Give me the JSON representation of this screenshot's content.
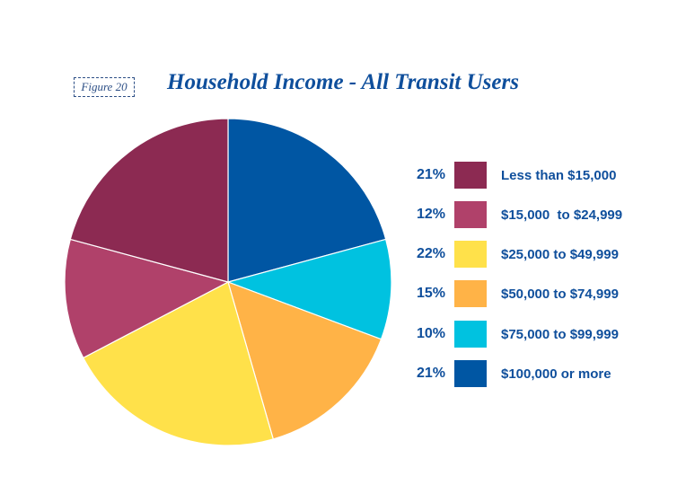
{
  "figure_label": "Figure 20",
  "colors": {
    "title": "#0f4f9c",
    "slices": [
      "#8c2a52",
      "#b0416a",
      "#ffe14a",
      "#ffb347",
      "#00c2e0",
      "#0056a3"
    ]
  },
  "chart_data": {
    "type": "pie",
    "title": "Household Income - All Transit Users",
    "categories": [
      "Less than $15,000",
      "$15,000  to $24,999",
      "$25,000 to $49,999",
      "$50,000 to $74,999",
      "$75,000 to $99,999",
      "$100,000 or more"
    ],
    "values": [
      21,
      12,
      22,
      15,
      10,
      21
    ],
    "labels": [
      "21%",
      "12%",
      "22%",
      "15%",
      "10%",
      "21%"
    ],
    "legend": "right"
  }
}
